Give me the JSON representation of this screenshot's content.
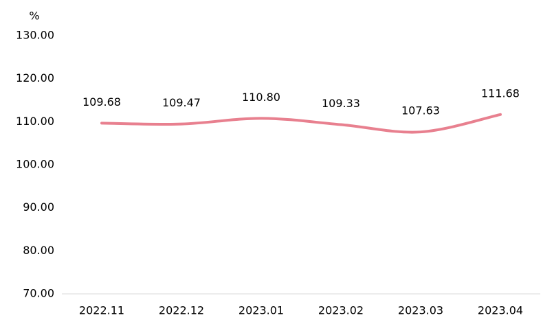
{
  "chart_data": {
    "type": "line",
    "y_label": "%",
    "categories": [
      "2022.11",
      "2022.12",
      "2023.01",
      "2023.02",
      "2023.03",
      "2023.04"
    ],
    "values": [
      109.68,
      109.47,
      110.8,
      109.33,
      107.63,
      111.68
    ],
    "value_labels": [
      "109.68",
      "109.47",
      "110.80",
      "109.33",
      "107.63",
      "111.68"
    ],
    "color": "#e8808f",
    "smooth": true,
    "ylim": [
      70,
      130
    ],
    "yticks": [
      {
        "value": 70,
        "label": "70.00"
      },
      {
        "value": 80,
        "label": "80.00"
      },
      {
        "value": 90,
        "label": "90.00"
      },
      {
        "value": 100,
        "label": "100.00"
      },
      {
        "value": 110,
        "label": "110.00"
      },
      {
        "value": 120,
        "label": "120.00"
      },
      {
        "value": 130,
        "label": "130.00"
      }
    ],
    "grid": false
  }
}
